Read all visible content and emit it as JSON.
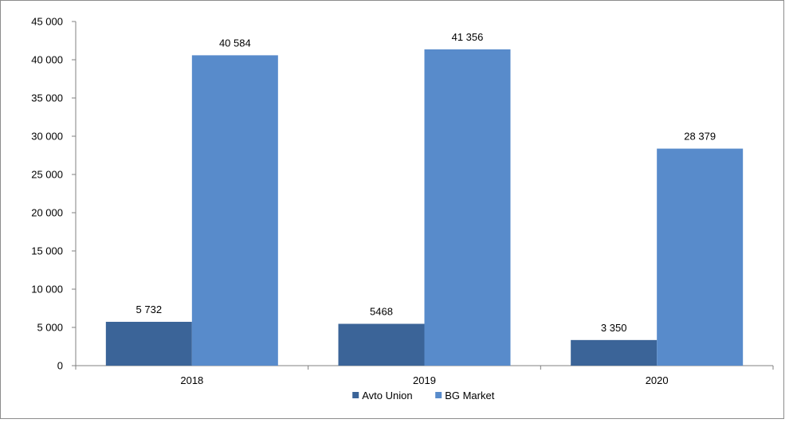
{
  "chart_data": {
    "type": "bar",
    "categories": [
      "2018",
      "2019",
      "2020"
    ],
    "series": [
      {
        "name": "Avto Union",
        "values": [
          5732,
          5468,
          3350
        ],
        "labels": [
          "5 732",
          "5468",
          "3 350"
        ],
        "color": "#3b6498"
      },
      {
        "name": "BG Market",
        "values": [
          40584,
          41356,
          28379
        ],
        "labels": [
          "40 584",
          "41 356",
          "28 379"
        ],
        "color": "#588bcb"
      }
    ],
    "y_ticks": [
      0,
      5000,
      10000,
      15000,
      20000,
      25000,
      30000,
      35000,
      40000,
      45000
    ],
    "y_tick_labels": [
      "0",
      "5 000",
      "10 000",
      "15 000",
      "20 000",
      "25 000",
      "30 000",
      "35 000",
      "40 000",
      "45 000"
    ],
    "ylim": [
      0,
      45000
    ],
    "grid": false,
    "legend_position": "bottom",
    "border_color": "#8c8c8c",
    "axis_color": "#808080"
  }
}
